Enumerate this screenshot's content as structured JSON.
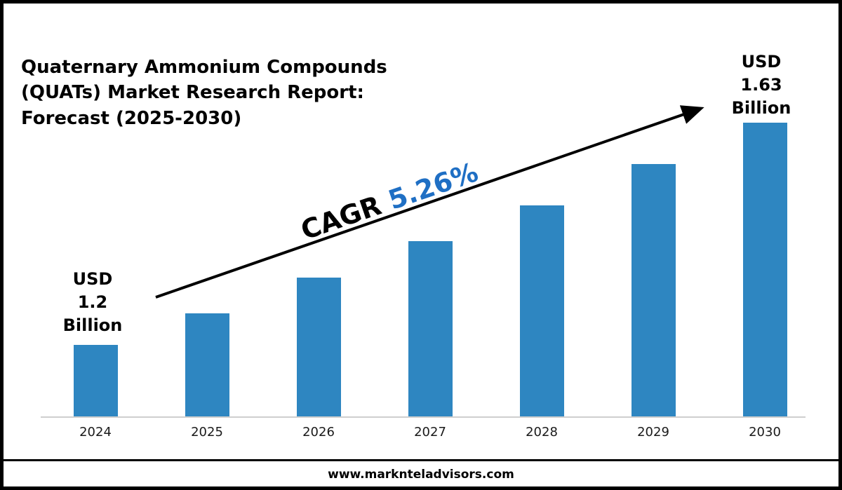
{
  "title": "Quaternary Ammonium Compounds\n(QUATs) Market Research Report:\nForecast (2025-2030)",
  "annotations": {
    "start_label": "USD\n1.2\nBillion",
    "end_label": "USD\n1.63\nBillion",
    "cagr_prefix": "CAGR",
    "cagr_value": "5.26%"
  },
  "footer": {
    "website": "www.marknteladvisors.com"
  },
  "colors": {
    "bar": "#2E86C1",
    "cagr_value": "#1F6FC4",
    "arrow": "#000000",
    "axis_line": "#cfcfcf"
  },
  "chart_data": {
    "type": "bar",
    "title": "Quaternary Ammonium Compounds (QUATs) Market Research Report: Forecast (2025-2030)",
    "categories": [
      "2024",
      "2025",
      "2026",
      "2027",
      "2028",
      "2029",
      "2030"
    ],
    "values": [
      1.2,
      1.26,
      1.33,
      1.4,
      1.47,
      1.55,
      1.63
    ],
    "unit": "USD Billion",
    "cagr": "5.26%",
    "start_value_label": "USD 1.2 Billion",
    "end_value_label": "USD 1.63 Billion",
    "xlabel": "",
    "ylabel": "",
    "ylim": [
      1.06,
      1.67
    ],
    "grid": false,
    "legend": false,
    "bar_color": "#2E86C1"
  }
}
